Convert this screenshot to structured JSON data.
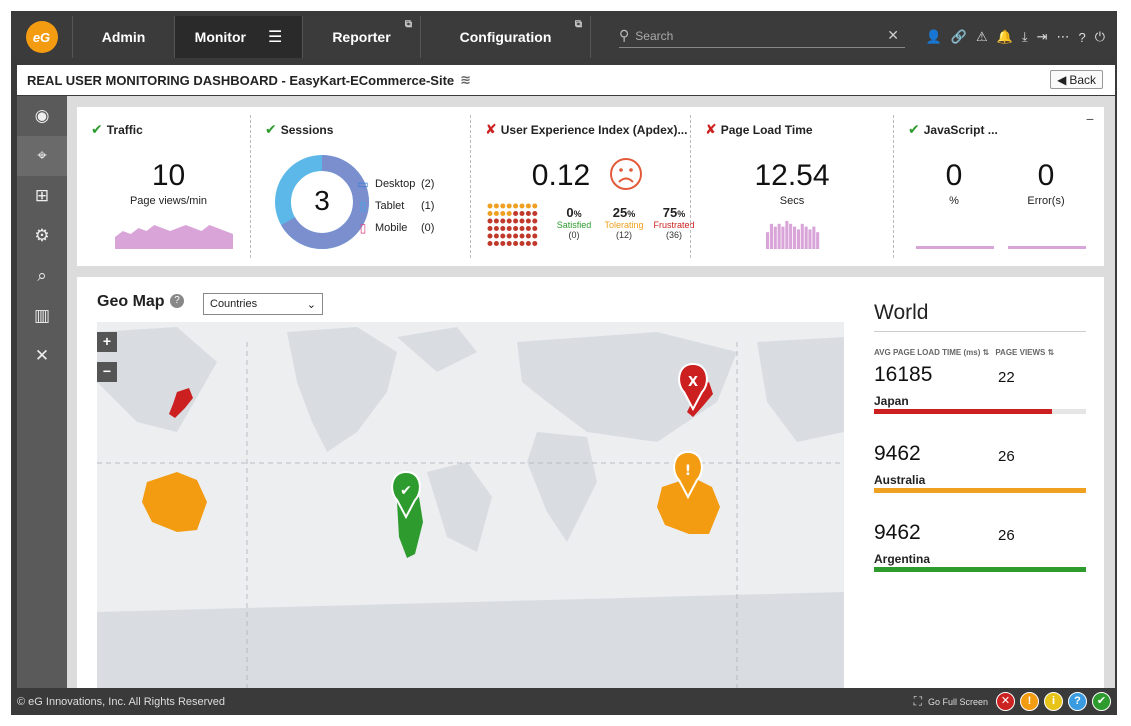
{
  "nav": {
    "logo_text": "eG",
    "tabs": [
      {
        "label": "Admin"
      },
      {
        "label": "Monitor"
      },
      {
        "label": "Reporter"
      },
      {
        "label": "Configuration"
      }
    ],
    "search_placeholder": "Search"
  },
  "header": {
    "title": "REAL USER MONITORING DASHBOARD - EasyKart-ECommerce-Site",
    "back_label": "Back"
  },
  "kpis": {
    "traffic": {
      "title": "Traffic",
      "value": "10",
      "unit": "Page views/min",
      "sparkline": [
        4,
        6,
        5,
        7,
        6,
        8,
        7,
        6,
        7,
        8,
        7,
        6,
        8,
        7,
        6,
        5
      ]
    },
    "sessions": {
      "title": "Sessions",
      "value": "3",
      "devices": [
        {
          "label": "Desktop",
          "count": "(2)"
        },
        {
          "label": "Tablet",
          "count": "(1)"
        },
        {
          "label": "Mobile",
          "count": "(0)"
        }
      ],
      "donut_fraction": 0.667
    },
    "apdex": {
      "title": "User Experience Index (Apdex)...",
      "value": "0.12",
      "stats": [
        {
          "pct": "0",
          "name": "Satisfied",
          "count": "(0)",
          "color": "#2e9b2e"
        },
        {
          "pct": "25",
          "name": "Tolerating",
          "count": "(12)",
          "color": "#f0a020"
        },
        {
          "pct": "75",
          "name": "Frustrated",
          "count": "(36)",
          "color": "#cc2222"
        }
      ],
      "tolerating_dots": 12,
      "frustrated_dots": 36
    },
    "page_load": {
      "title": "Page Load Time",
      "value": "12.54",
      "unit": "Secs",
      "bars": [
        6,
        9,
        8,
        9,
        8,
        10,
        9,
        8,
        7,
        9,
        8,
        7,
        8,
        6
      ]
    },
    "javascript": {
      "title": "JavaScript ...",
      "value1": "0",
      "unit1": "%",
      "value2": "0",
      "unit2": "Error(s)"
    }
  },
  "geo": {
    "title": "Geo Map",
    "dropdown_value": "Countries",
    "world_title": "World",
    "col_time": "AVG PAGE LOAD TIME (ms)",
    "col_views": "PAGE VIEWS",
    "rows": [
      {
        "time": "16185",
        "views": "22",
        "name": "Japan",
        "color": "#cc1f1f",
        "fill": 0.84
      },
      {
        "time": "9462",
        "views": "26",
        "name": "Australia",
        "color": "#f0a020",
        "fill": 1.0
      },
      {
        "time": "9462",
        "views": "26",
        "name": "Argentina",
        "color": "#2e9b2e",
        "fill": 1.0
      }
    ]
  },
  "footer": {
    "copyright": "© eG Innovations, Inc. All Rights Reserved",
    "fullscreen_label": "Go Full Screen"
  }
}
